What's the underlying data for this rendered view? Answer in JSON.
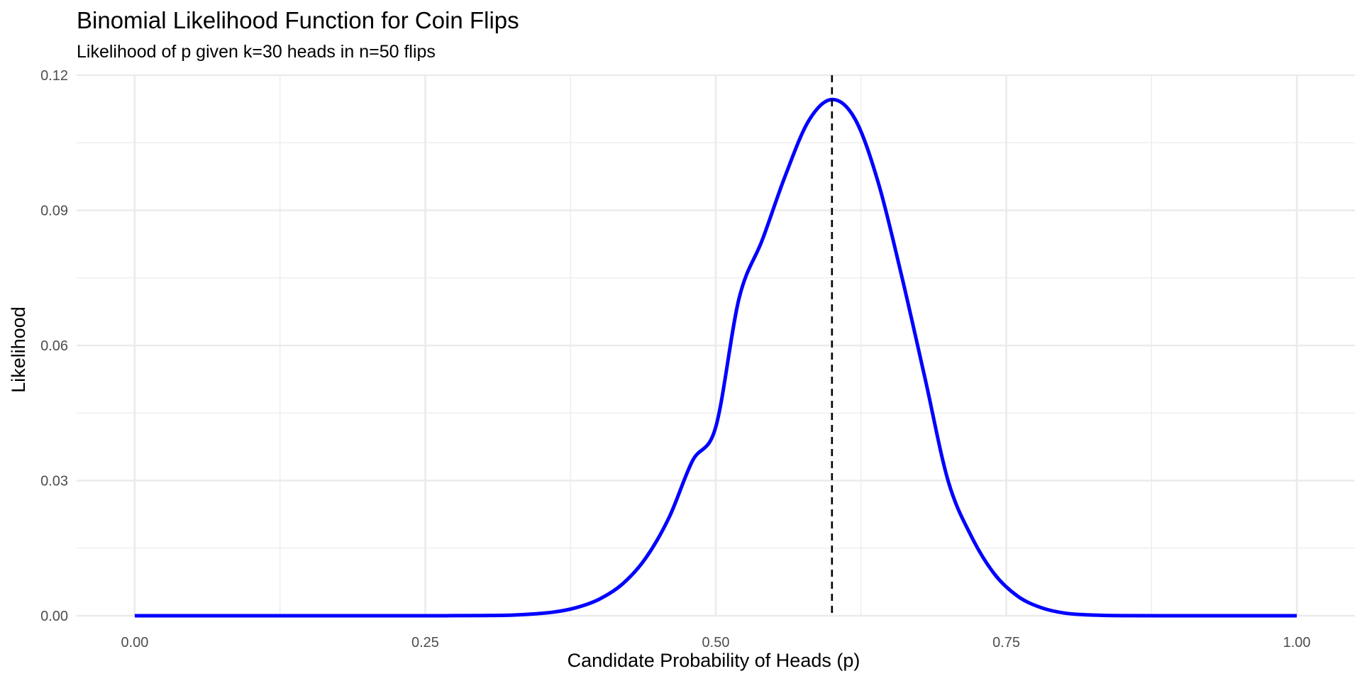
{
  "chart_data": {
    "type": "line",
    "title": "Binomial Likelihood Function for Coin Flips",
    "subtitle": "Likelihood of p given k=30 heads in n=50 flips",
    "xlabel": "Candidate Probability of Heads (p)",
    "ylabel": "Likelihood",
    "xlim": [
      -0.05,
      1.05
    ],
    "ylim": [
      0,
      0.12
    ],
    "x_ticks": [
      0.0,
      0.25,
      0.5,
      0.75,
      1.0
    ],
    "x_tick_labels": [
      "0.00",
      "0.25",
      "0.50",
      "0.75",
      "1.00"
    ],
    "y_ticks": [
      0.0,
      0.03,
      0.06,
      0.09,
      0.12
    ],
    "y_tick_labels": [
      "0.00",
      "0.03",
      "0.06",
      "0.09",
      "0.12"
    ],
    "grid": true,
    "series": [
      {
        "color": "#0000ff",
        "x": [
          0.0,
          0.05,
          0.1,
          0.15,
          0.2,
          0.25,
          0.3,
          0.33,
          0.36,
          0.38,
          0.4,
          0.42,
          0.44,
          0.46,
          0.48,
          0.5,
          0.52,
          0.54,
          0.56,
          0.58,
          0.6,
          0.62,
          0.64,
          0.66,
          0.68,
          0.7,
          0.72,
          0.74,
          0.76,
          0.78,
          0.8,
          0.82,
          0.85,
          0.9,
          0.95,
          1.0
        ],
        "y": [
          0.0,
          0.0,
          0.0,
          0.0,
          0.0,
          0.0,
          4e-05,
          0.0002,
          0.0008,
          0.0018,
          0.0037,
          0.0071,
          0.0129,
          0.0219,
          0.0344,
          0.0419,
          0.0704,
          0.0834,
          0.0978,
          0.1099,
          0.1146,
          0.1102,
          0.096,
          0.0754,
          0.0528,
          0.0299,
          0.0176,
          0.0092,
          0.0043,
          0.0018,
          0.0006,
          0.0002,
          2e-05,
          0.0,
          0.0,
          0.0
        ]
      }
    ],
    "reference_lines": [
      {
        "axis": "x",
        "value": 0.6,
        "style": "dashed",
        "color": "#000000"
      }
    ]
  }
}
